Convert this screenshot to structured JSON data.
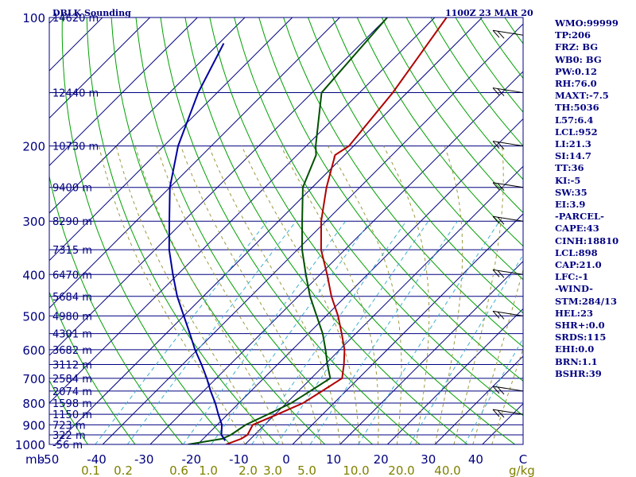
{
  "chart_data": {
    "type": "skew-t log-p sounding",
    "title": "DBLK Sounding",
    "valid_time": "1100Z 23 MAR 20",
    "pressure_unit": "mb",
    "mixing_ratio_unit": "g/kg",
    "pressure_ticks": [
      "100",
      "200",
      "300",
      "400",
      "500",
      "600",
      "700",
      "800",
      "900",
      "1000"
    ],
    "pressure_range": [
      100,
      1000
    ],
    "temperature_ticks": [
      "-50",
      "-40",
      "-30",
      "-20",
      "-10",
      "0",
      "10",
      "20",
      "30",
      "40",
      "C"
    ],
    "temperature_range": [
      -50,
      50
    ],
    "mixing_ratio_ticks": [
      "0.1",
      "0.2",
      "0.6",
      "1.0",
      "2.0",
      "3.0",
      "5.0",
      "10.0",
      "20.0",
      "40.0"
    ],
    "height_labels": [
      {
        "p": 100,
        "label": "14620 m"
      },
      {
        "p": 150,
        "label": "12440 m"
      },
      {
        "p": 200,
        "label": "10730 m"
      },
      {
        "p": 250,
        "label": "9400 m"
      },
      {
        "p": 300,
        "label": "8290 m"
      },
      {
        "p": 350,
        "label": "7315 m"
      },
      {
        "p": 400,
        "label": "6470 m"
      },
      {
        "p": 450,
        "label": "5684 m"
      },
      {
        "p": 500,
        "label": "4980 m"
      },
      {
        "p": 550,
        "label": "4301 m"
      },
      {
        "p": 600,
        "label": "3682 m"
      },
      {
        "p": 650,
        "label": "3112 m"
      },
      {
        "p": 700,
        "label": "2584 m"
      },
      {
        "p": 750,
        "label": "2074 m"
      },
      {
        "p": 800,
        "label": "1598 m"
      },
      {
        "p": 850,
        "label": "1150 m"
      },
      {
        "p": 900,
        "label": "723 m"
      },
      {
        "p": 950,
        "label": "322 m"
      },
      {
        "p": 1000,
        "label": "-56 m"
      }
    ],
    "series": [
      {
        "kind": "temperature",
        "color": "#b00000",
        "points": [
          [
            1000,
            -14
          ],
          [
            970,
            -12
          ],
          [
            950,
            -11.5
          ],
          [
            900,
            -12.5
          ],
          [
            850,
            -9.5
          ],
          [
            800,
            -6.5
          ],
          [
            750,
            -5
          ],
          [
            700,
            -3.5
          ],
          [
            650,
            -6
          ],
          [
            600,
            -9
          ],
          [
            550,
            -13
          ],
          [
            500,
            -17.5
          ],
          [
            450,
            -23
          ],
          [
            400,
            -28.5
          ],
          [
            350,
            -35
          ],
          [
            300,
            -41
          ],
          [
            250,
            -47
          ],
          [
            210,
            -52
          ],
          [
            200,
            -51
          ],
          [
            150,
            -53
          ],
          [
            100,
            -57.5
          ]
        ]
      },
      {
        "kind": "dewpoint",
        "color": "#005000",
        "points": [
          [
            1000,
            -22
          ],
          [
            970,
            -16
          ],
          [
            950,
            -15
          ],
          [
            900,
            -14
          ],
          [
            850,
            -11.5
          ],
          [
            800,
            -9
          ],
          [
            750,
            -7.5
          ],
          [
            700,
            -6
          ],
          [
            650,
            -9.5
          ],
          [
            600,
            -13
          ],
          [
            550,
            -17
          ],
          [
            500,
            -22
          ],
          [
            450,
            -27.5
          ],
          [
            400,
            -33
          ],
          [
            350,
            -39
          ],
          [
            300,
            -45
          ],
          [
            250,
            -52
          ],
          [
            210,
            -56
          ],
          [
            200,
            -58
          ],
          [
            150,
            -68
          ],
          [
            100,
            -70
          ]
        ]
      },
      {
        "kind": "parcel",
        "color": "#0000a0",
        "points": [
          [
            980,
            -15
          ],
          [
            950,
            -17
          ],
          [
            900,
            -19
          ],
          [
            850,
            -22
          ],
          [
            800,
            -25
          ],
          [
            750,
            -28.5
          ],
          [
            700,
            -32
          ],
          [
            650,
            -36
          ],
          [
            600,
            -40.5
          ],
          [
            550,
            -45
          ],
          [
            500,
            -50
          ],
          [
            450,
            -55.5
          ],
          [
            400,
            -61
          ],
          [
            350,
            -67
          ],
          [
            300,
            -73
          ],
          [
            250,
            -80
          ],
          [
            200,
            -87
          ],
          [
            150,
            -94
          ],
          [
            115,
            -99
          ]
        ]
      }
    ],
    "wind_barbs_at_p": [
      110,
      150,
      200,
      250,
      300,
      400,
      500,
      750,
      850
    ]
  },
  "indices": [
    "WMO:99999",
    "TP:206",
    "FRZ: BG",
    "WB0: BG",
    "PW:0.12",
    "RH:76.0",
    "MAXT:-7.5",
    "TH:5036",
    "L57:6.4",
    "LCL:952",
    "LI:21.3",
    "SI:14.7",
    "TT:36",
    "KI:-5",
    "SW:35",
    "EI:3.9",
    "-PARCEL-",
    "CAPE:43",
    "CINH:18810",
    "LCL:898",
    "CAP:21.0",
    "LFC:-1",
    "-WIND-",
    "STM:284/13",
    "HEL:23",
    "SHR+:0.0",
    "SRDS:115",
    "EHI:0.0",
    "BRN:1.1",
    "BSHR:39"
  ],
  "colors": {
    "frame": "#000080",
    "isobar": "#000080",
    "isotherm": "#000080",
    "dry_adiabat": "#00a000",
    "moist_adiabat": "#9a9a40",
    "mixing_ratio": "#40b0d0",
    "temperature": "#b00000",
    "dewpoint": "#005000",
    "parcel": "#0000a0",
    "wind_barb": "#000000"
  }
}
